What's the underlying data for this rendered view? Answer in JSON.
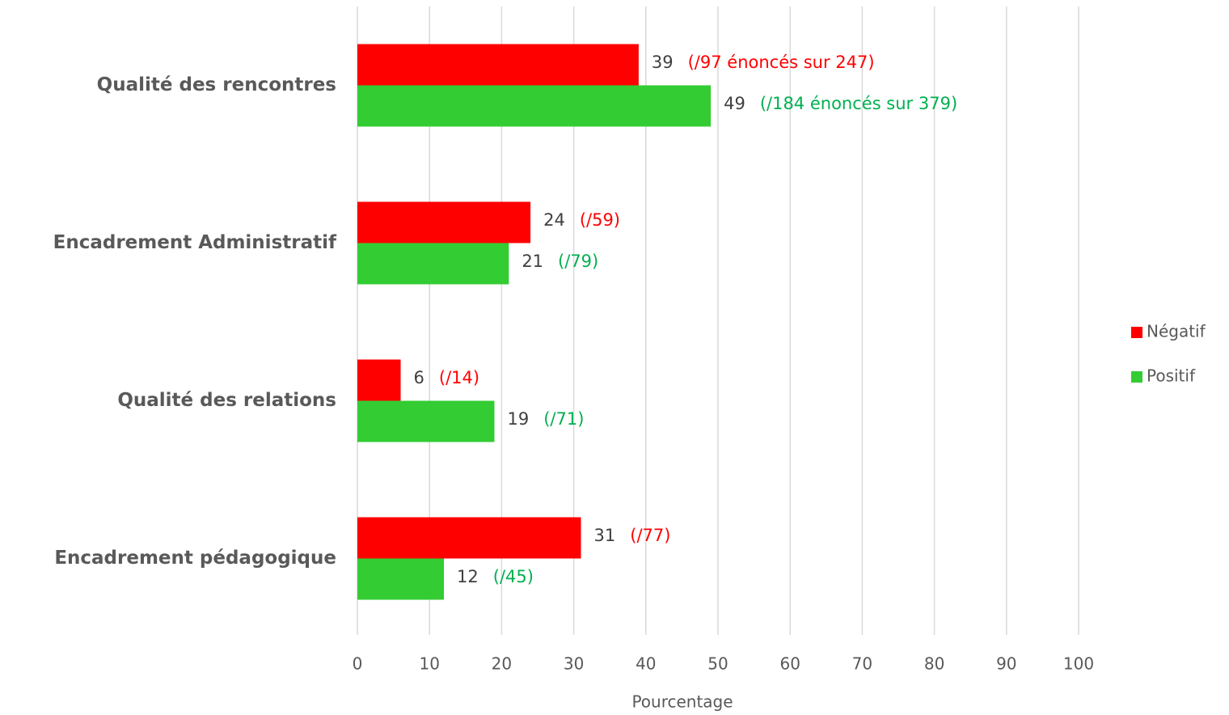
{
  "chart_data": {
    "type": "hbar",
    "categories": [
      "Qualité des rencontres",
      "Encadrement Administratif",
      "Qualité des relations",
      "Encadrement pédagogique"
    ],
    "series": [
      {
        "name": "Négatif",
        "color": "#ff0000",
        "annotation_color": "#ff0000",
        "values": [
          39,
          24,
          6,
          31
        ],
        "annotations": [
          "(/97 énoncés sur 247)",
          "(/59)",
          "(/14)",
          "(/77)"
        ]
      },
      {
        "name": "Positif",
        "color": "#33cc33",
        "annotation_color": "#00b050",
        "values": [
          49,
          21,
          19,
          12
        ],
        "annotations": [
          "(/184 énoncés sur 379)",
          "(/79)",
          "(/71)",
          "(/45)"
        ]
      }
    ],
    "xlabel": "Pourcentage",
    "xlim": [
      0,
      100
    ],
    "xticks": [
      0,
      10,
      20,
      30,
      40,
      50,
      60,
      70,
      80,
      90,
      100
    ],
    "grid": true,
    "legend": "right"
  }
}
